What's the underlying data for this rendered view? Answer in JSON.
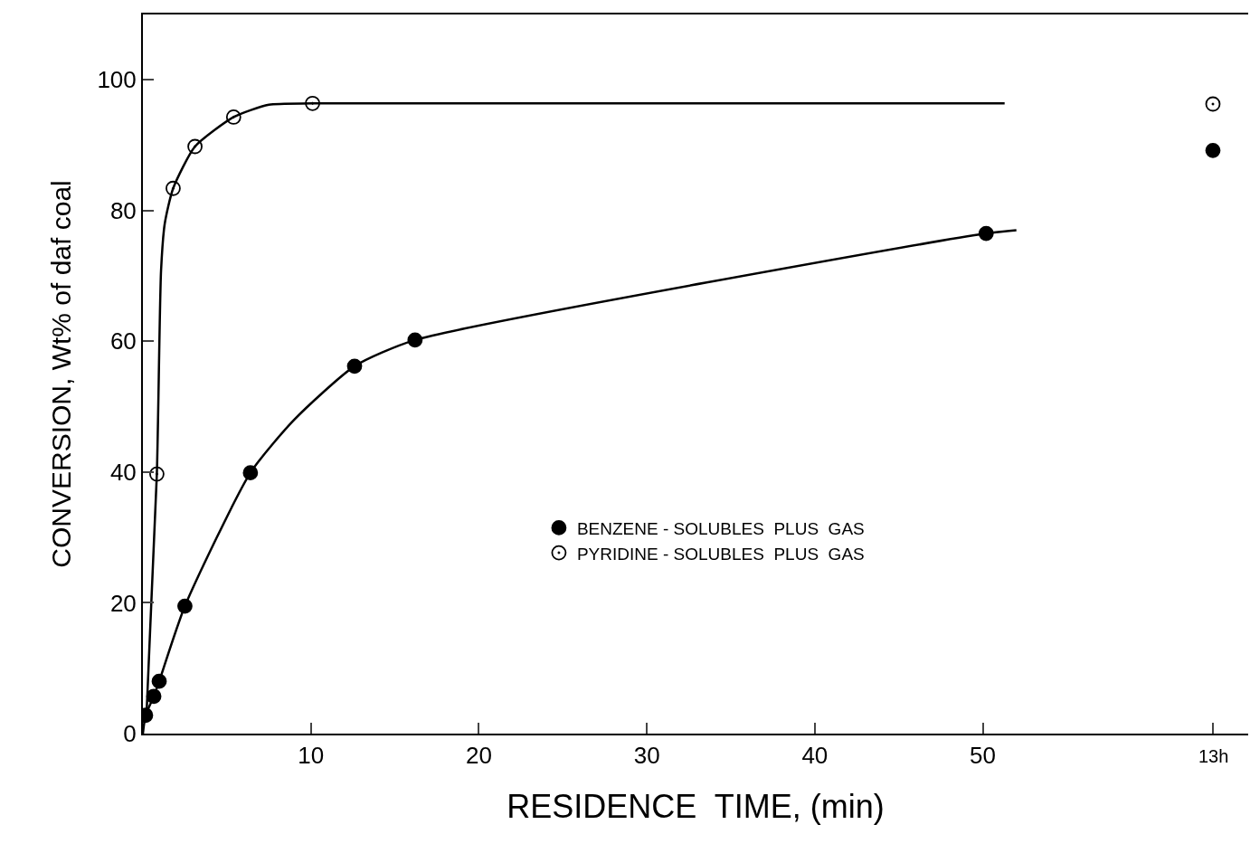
{
  "chart_data": {
    "type": "scatter",
    "xlabel": "RESIDENCE  TIME, (min)",
    "ylabel": "CONVERSION, Wt% of daf coal",
    "xlim": [
      0,
      65.8
    ],
    "ylim": [
      0,
      110
    ],
    "xticks": [
      10,
      20,
      30,
      40,
      50,
      {
        "value": 63.7,
        "label": null
      }
    ],
    "annotations": [
      "13h"
    ],
    "yticks": [
      0,
      20,
      40,
      60,
      80,
      100
    ],
    "legend": "right",
    "series": [
      {
        "name": "BENZENE - SOLUBLES  PLUS  GAS",
        "color": "#000000",
        "marker": "circle",
        "x": [
          0.16,
          0.65,
          0.97,
          2.5,
          6.4,
          12.6,
          16.2,
          50.2,
          63.7
        ],
        "values": [
          2.8,
          5.7,
          8.0,
          19.5,
          39.9,
          56.2,
          60.2,
          76.5,
          89.2
        ]
      },
      {
        "name": "PYRIDINE - SOLUBLES  PLUS  GAS",
        "color": "#ffffff",
        "marker": "circle",
        "x": [
          0.83,
          1.8,
          3.1,
          5.4,
          10.1,
          63.7
        ],
        "values": [
          39.7,
          83.4,
          89.8,
          94.3,
          96.4,
          96.3
        ]
      },
      {
        "type": "line",
        "color": "#000000",
        "marker": "none",
        "x": [
          0,
          0.16,
          0.65,
          0.97,
          2.5,
          6.4,
          9,
          12.6,
          16.2,
          50.2,
          52
        ],
        "values": [
          0,
          2.8,
          5.7,
          8.0,
          19.5,
          39.9,
          48,
          56.2,
          60.2,
          76.5,
          77
        ]
      },
      {
        "type": "line",
        "color": "#000000",
        "marker": "none",
        "x": [
          0.2,
          0.83,
          1.08,
          1.3,
          1.8,
          3.1,
          5.4,
          7.5,
          10.1,
          51.3
        ],
        "values": [
          2,
          39.7,
          70.8,
          78,
          83.4,
          89.8,
          94.3,
          96.2,
          96.4,
          96.4
        ]
      }
    ]
  }
}
